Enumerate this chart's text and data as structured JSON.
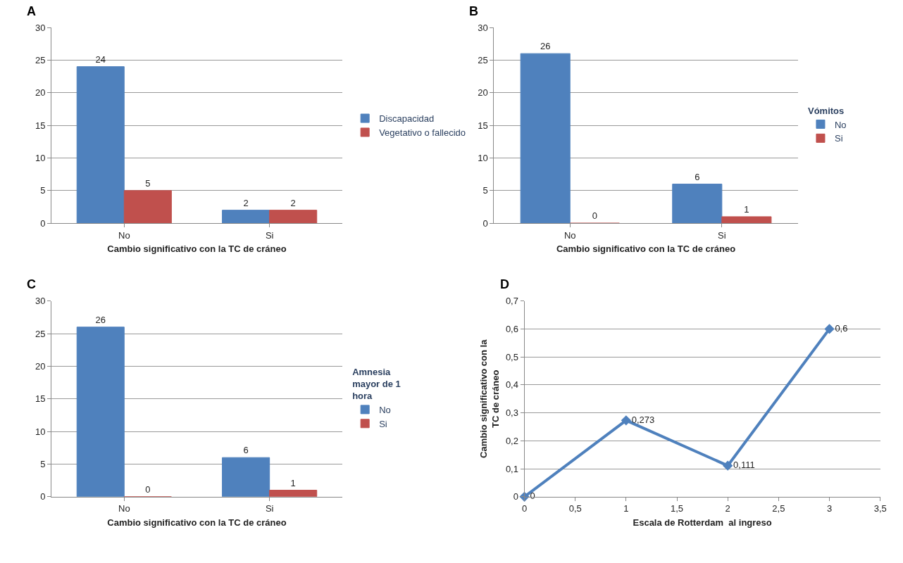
{
  "chart_data": [
    {
      "type": "bar",
      "title": "A",
      "xlabel": "Cambio significativo con la TC de cráneo",
      "categories": [
        "No",
        "Si"
      ],
      "series": [
        {
          "name": "Discapacidad",
          "color": "#4f81bd",
          "values": [
            24,
            2
          ]
        },
        {
          "name": "Vegetativo o fallecido",
          "color": "#c0504d",
          "values": [
            5,
            2
          ]
        }
      ],
      "ylim": [
        0,
        30
      ],
      "yticks": [
        0,
        5,
        10,
        15,
        20,
        25,
        30
      ],
      "grid": "y",
      "legend": "right",
      "data_labels": true
    },
    {
      "type": "bar",
      "title": "B",
      "xlabel": "Cambio significativo con la TC de cráneo",
      "legend_title": "Vómitos",
      "categories": [
        "No",
        "Si"
      ],
      "series": [
        {
          "name": "No",
          "color": "#4f81bd",
          "values": [
            26,
            6
          ]
        },
        {
          "name": "Si",
          "color": "#c0504d",
          "values": [
            0,
            1
          ]
        }
      ],
      "ylim": [
        0,
        30
      ],
      "yticks": [
        0,
        5,
        10,
        15,
        20,
        25,
        30
      ],
      "grid": "y",
      "legend": "right",
      "data_labels": true
    },
    {
      "type": "bar",
      "title": "C",
      "xlabel": "Cambio significativo con la TC de cráneo",
      "legend_title": "Amnesia mayor de 1 hora",
      "categories": [
        "No",
        "Si"
      ],
      "series": [
        {
          "name": "No",
          "color": "#4f81bd",
          "values": [
            26,
            6
          ]
        },
        {
          "name": "Si",
          "color": "#c0504d",
          "values": [
            0,
            1
          ]
        }
      ],
      "ylim": [
        0,
        30
      ],
      "yticks": [
        0,
        5,
        10,
        15,
        20,
        25,
        30
      ],
      "grid": "y",
      "legend": "right",
      "data_labels": true
    },
    {
      "type": "line",
      "title": "D",
      "xlabel": "Escala de Rotterdam  al ingreso",
      "ylabel": "Cambio significativo con la TC de cráneo",
      "x": [
        0,
        1,
        2,
        3
      ],
      "series": [
        {
          "color": "#4f81bd",
          "values": [
            0,
            0.273,
            0.111,
            0.6
          ],
          "value_labels": [
            "0",
            "0,273",
            "0,111",
            "0,6"
          ]
        }
      ],
      "xlim": [
        0,
        3.5
      ],
      "xticks": [
        0,
        {
          "value": 0.5,
          "label": "0,5"
        },
        1,
        {
          "value": 1.5,
          "label": "1,5"
        },
        2,
        {
          "value": 2.5,
          "label": "2,5"
        },
        3,
        {
          "value": 3.5,
          "label": "3,5"
        }
      ],
      "ylim": [
        0,
        0.7
      ],
      "yticks": [
        0,
        {
          "value": 0.1,
          "label": "0,1"
        },
        {
          "value": 0.2,
          "label": "0,2"
        },
        {
          "value": 0.3,
          "label": "0,3"
        },
        {
          "value": 0.4,
          "label": "0,4"
        },
        {
          "value": 0.5,
          "label": "0,5"
        },
        {
          "value": 0.6,
          "label": "0,6"
        },
        {
          "value": 0.7,
          "label": "0,7"
        }
      ],
      "grid": "y",
      "marker": "diamond",
      "line_style": "solid"
    }
  ]
}
